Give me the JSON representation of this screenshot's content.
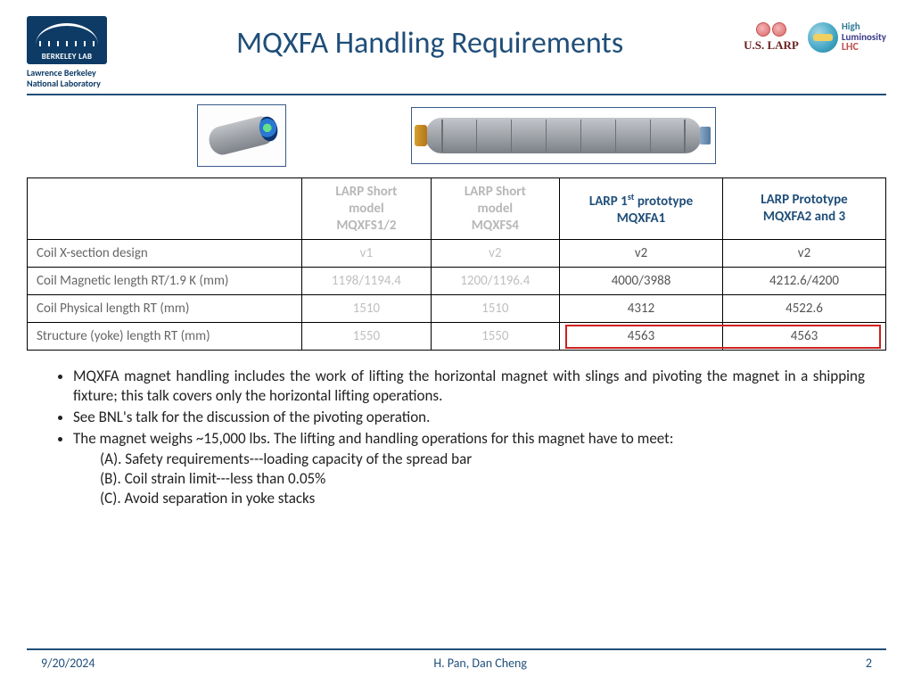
{
  "colors": {
    "title": "#1f4e79",
    "rule": "#1f4e79",
    "faded_text": "#bfbfbf",
    "body_text": "#222222",
    "border": "#000000",
    "highlight_border": "#d02020"
  },
  "left_logo": {
    "badge_text": "BERKELEY LAB",
    "caption_line1": "Lawrence Berkeley",
    "caption_line2": "National Laboratory"
  },
  "title": "MQXFA Handling Requirements",
  "larp_logo_text": "U.S. LARP",
  "hilumi": {
    "line1": "High",
    "line2": "Luminosity",
    "line3": "LHC"
  },
  "table": {
    "columns": [
      {
        "label": ""
      },
      {
        "label_line1": "LARP Short",
        "label_line2": "model",
        "label_line3": "MQXFS1/2",
        "faded": true
      },
      {
        "label_line1": "LARP Short",
        "label_line2": "model",
        "label_line3": "MQXFS4",
        "faded": true
      },
      {
        "label_html": "LARP 1<sup>st</sup> prototype<br>MQXFA1",
        "faded": false
      },
      {
        "label_html": "LARP Prototype<br>MQXFA2 and 3",
        "faded": false
      }
    ],
    "rows": [
      {
        "label": "Coil X-section design",
        "cells": [
          "v1",
          "v2",
          "v2",
          "v2"
        ],
        "faded_cols": [
          0,
          1
        ]
      },
      {
        "label": "Coil Magnetic length RT/1.9 K (mm)",
        "cells": [
          "1198/1194.4",
          "1200/1196.4",
          "4000/3988",
          "4212.6/4200"
        ],
        "faded_cols": [
          0,
          1
        ]
      },
      {
        "label": "Coil Physical length RT (mm)",
        "cells": [
          "1510",
          "1510",
          "4312",
          "4522.6"
        ],
        "faded_cols": [
          0,
          1
        ]
      },
      {
        "label": "Structure (yoke) length RT (mm)",
        "cells": [
          "1550",
          "1550",
          "4563",
          "4563"
        ],
        "faded_cols": [
          0,
          1
        ],
        "highlight_cols": [
          2,
          3
        ]
      }
    ]
  },
  "bullets": [
    "MQXFA magnet handling includes the work of lifting the horizontal magnet with slings and pivoting the magnet in a shipping fixture; this talk covers only the horizontal lifting operations.",
    "See BNL's talk for the discussion of the pivoting operation.",
    "The magnet weighs ~15,000 lbs. The lifting and handling operations for this magnet have to meet:"
  ],
  "subitems": [
    "(A). Safety requirements---loading capacity of the spread bar",
    "(B). Coil strain limit---less than 0.05%",
    "(C). Avoid separation in yoke stacks"
  ],
  "footer": {
    "date": "9/20/2024",
    "authors": "H. Pan, Dan Cheng",
    "page": "2"
  }
}
